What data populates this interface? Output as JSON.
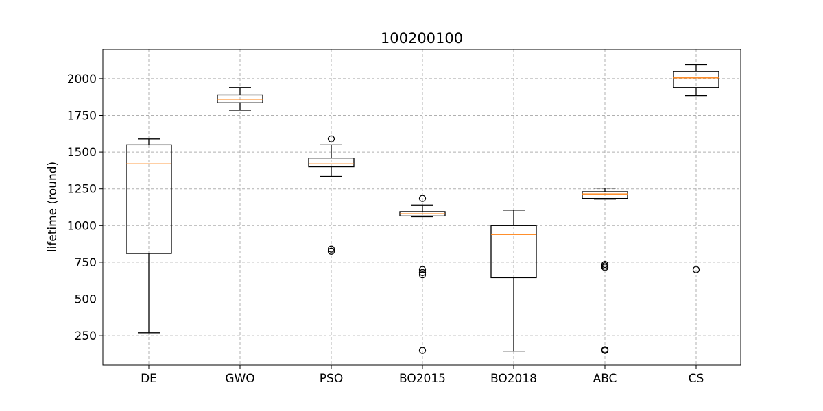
{
  "chart_data": {
    "type": "boxplot",
    "title": "100200100",
    "xlabel": "",
    "ylabel": "lifetime (round)",
    "ylim": [
      50,
      2200
    ],
    "yticks": [
      250,
      500,
      750,
      1000,
      1250,
      1500,
      1750,
      2000
    ],
    "grid": true,
    "categories": [
      "DE",
      "GWO",
      "PSO",
      "BO2015",
      "BO2018",
      "ABC",
      "CS"
    ],
    "boxes": [
      {
        "name": "DE",
        "whisker_low": 270,
        "q1": 810,
        "median": 1420,
        "q3": 1550,
        "whisker_high": 1590,
        "outliers": []
      },
      {
        "name": "GWO",
        "whisker_low": 1785,
        "q1": 1835,
        "median": 1860,
        "q3": 1890,
        "whisker_high": 1940,
        "outliers": []
      },
      {
        "name": "PSO",
        "whisker_low": 1335,
        "q1": 1400,
        "median": 1420,
        "q3": 1460,
        "whisker_high": 1550,
        "outliers": [
          1590,
          840,
          825
        ]
      },
      {
        "name": "BO2015",
        "whisker_low": 1060,
        "q1": 1065,
        "median": 1080,
        "q3": 1095,
        "whisker_high": 1140,
        "outliers": [
          1185,
          700,
          680,
          665,
          150
        ]
      },
      {
        "name": "BO2018",
        "whisker_low": 145,
        "q1": 645,
        "median": 940,
        "q3": 1000,
        "whisker_high": 1105,
        "outliers": []
      },
      {
        "name": "ABC",
        "whisker_low": 1180,
        "q1": 1185,
        "median": 1215,
        "q3": 1230,
        "whisker_high": 1255,
        "outliers": [
          735,
          725,
          715,
          155,
          150
        ]
      },
      {
        "name": "CS",
        "whisker_low": 1885,
        "q1": 1940,
        "median": 2005,
        "q3": 2050,
        "whisker_high": 2095,
        "outliers": [
          700
        ]
      }
    ],
    "colors": {
      "box": "#000000",
      "median": "#ff7f0e",
      "grid": "#b0b0b0"
    }
  }
}
